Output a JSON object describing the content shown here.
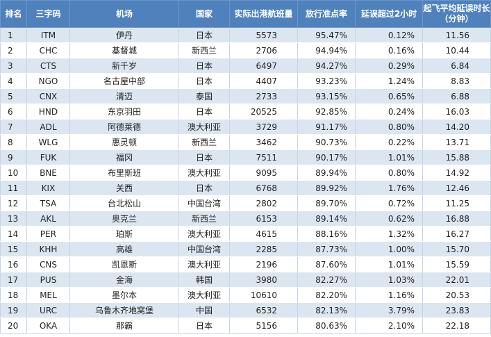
{
  "table": {
    "headers": {
      "rank": "排名",
      "code": "三字码",
      "airport": "机场",
      "country": "国家",
      "flights": "实际出港航班量",
      "ontime_rate": "放行准点率",
      "delay_over_2h": "延误超过2小时",
      "avg_delay_line1": "起飞平均延误时长",
      "avg_delay_line2": "（分钟）"
    },
    "rows": [
      {
        "rank": "1",
        "code": "ITM",
        "airport": "伊丹",
        "country": "日本",
        "flights": "5573",
        "ontime_rate": "95.47%",
        "delay_over_2h": "0.12%",
        "avg_delay": "11.56"
      },
      {
        "rank": "2",
        "code": "CHC",
        "airport": "基督城",
        "country": "新西兰",
        "flights": "2706",
        "ontime_rate": "94.94%",
        "delay_over_2h": "0.16%",
        "avg_delay": "10.44"
      },
      {
        "rank": "3",
        "code": "CTS",
        "airport": "新千岁",
        "country": "日本",
        "flights": "6497",
        "ontime_rate": "94.27%",
        "delay_over_2h": "0.29%",
        "avg_delay": "6.84"
      },
      {
        "rank": "4",
        "code": "NGO",
        "airport": "名古屋中部",
        "country": "日本",
        "flights": "4407",
        "ontime_rate": "93.23%",
        "delay_over_2h": "1.24%",
        "avg_delay": "8.83"
      },
      {
        "rank": "5",
        "code": "CNX",
        "airport": "清迈",
        "country": "泰国",
        "flights": "2733",
        "ontime_rate": "93.15%",
        "delay_over_2h": "0.65%",
        "avg_delay": "6.88"
      },
      {
        "rank": "6",
        "code": "HND",
        "airport": "东京羽田",
        "country": "日本",
        "flights": "20525",
        "ontime_rate": "92.85%",
        "delay_over_2h": "0.24%",
        "avg_delay": "16.03"
      },
      {
        "rank": "7",
        "code": "ADL",
        "airport": "阿德莱德",
        "country": "澳大利亚",
        "flights": "3729",
        "ontime_rate": "91.17%",
        "delay_over_2h": "0.80%",
        "avg_delay": "14.20"
      },
      {
        "rank": "8",
        "code": "WLG",
        "airport": "惠灵顿",
        "country": "新西兰",
        "flights": "3462",
        "ontime_rate": "90.73%",
        "delay_over_2h": "0.22%",
        "avg_delay": "13.71"
      },
      {
        "rank": "9",
        "code": "FUK",
        "airport": "福冈",
        "country": "日本",
        "flights": "7511",
        "ontime_rate": "90.17%",
        "delay_over_2h": "1.01%",
        "avg_delay": "15.88"
      },
      {
        "rank": "10",
        "code": "BNE",
        "airport": "布里斯班",
        "country": "澳大利亚",
        "flights": "9095",
        "ontime_rate": "89.94%",
        "delay_over_2h": "0.80%",
        "avg_delay": "14.92"
      },
      {
        "rank": "11",
        "code": "KIX",
        "airport": "关西",
        "country": "日本",
        "flights": "6768",
        "ontime_rate": "89.92%",
        "delay_over_2h": "1.76%",
        "avg_delay": "12.46"
      },
      {
        "rank": "12",
        "code": "TSA",
        "airport": "台北松山",
        "country": "中国台湾",
        "flights": "2802",
        "ontime_rate": "89.70%",
        "delay_over_2h": "0.72%",
        "avg_delay": "11.25"
      },
      {
        "rank": "13",
        "code": "AKL",
        "airport": "奥克兰",
        "country": "新西兰",
        "flights": "6153",
        "ontime_rate": "89.14%",
        "delay_over_2h": "0.62%",
        "avg_delay": "16.88"
      },
      {
        "rank": "14",
        "code": "PER",
        "airport": "珀斯",
        "country": "澳大利亚",
        "flights": "4615",
        "ontime_rate": "88.16%",
        "delay_over_2h": "1.32%",
        "avg_delay": "16.27"
      },
      {
        "rank": "15",
        "code": "KHH",
        "airport": "高雄",
        "country": "中国台湾",
        "flights": "2285",
        "ontime_rate": "87.73%",
        "delay_over_2h": "1.00%",
        "avg_delay": "15.70"
      },
      {
        "rank": "16",
        "code": "CNS",
        "airport": "凯恩斯",
        "country": "澳大利亚",
        "flights": "2196",
        "ontime_rate": "87.60%",
        "delay_over_2h": "1.01%",
        "avg_delay": "15.59"
      },
      {
        "rank": "17",
        "code": "PUS",
        "airport": "金海",
        "country": "韩国",
        "flights": "3980",
        "ontime_rate": "82.27%",
        "delay_over_2h": "1.03%",
        "avg_delay": "22.01"
      },
      {
        "rank": "18",
        "code": "MEL",
        "airport": "墨尔本",
        "country": "澳大利亚",
        "flights": "10610",
        "ontime_rate": "82.20%",
        "delay_over_2h": "1.16%",
        "avg_delay": "20.53"
      },
      {
        "rank": "19",
        "code": "URC",
        "airport": "乌鲁木齐地窝堡",
        "country": "中国",
        "flights": "6532",
        "ontime_rate": "82.13%",
        "delay_over_2h": "3.79%",
        "avg_delay": "23.83"
      },
      {
        "rank": "20",
        "code": "OKA",
        "airport": "那霸",
        "country": "日本",
        "flights": "5156",
        "ontime_rate": "80.63%",
        "delay_over_2h": "2.10%",
        "avg_delay": "22.18"
      }
    ]
  },
  "colors": {
    "header_bg": "#4f81bd",
    "header_text": "#ffffff",
    "band_row": "#dce6f1",
    "plain_row": "#ffffff"
  }
}
